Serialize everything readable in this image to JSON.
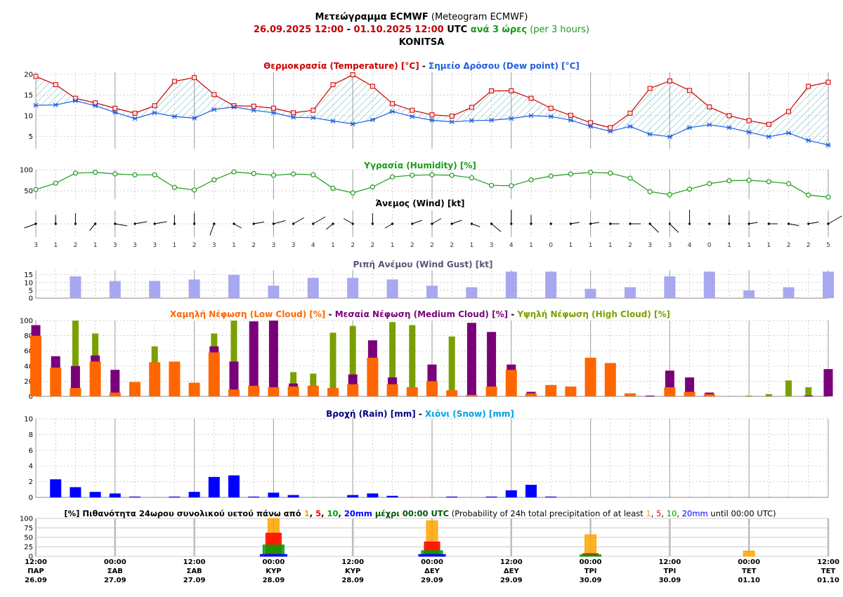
{
  "header": {
    "line1_bold": "Μετεώγραμμα ECMWF",
    "line1_rest": " (Meteogram ECMWF)",
    "start": "26.09.2025 12:00",
    "dash": " - ",
    "end": "01.10.2025 12:00",
    "utc": " UTC ",
    "every_gr": "ανά 3 ώρες",
    "every_en": " (per 3 hours)",
    "location": "KONITSA"
  },
  "titles": {
    "temp": {
      "p1": "Θερμοκρασία (Temperature) [°C]",
      "sep": " - ",
      "p2": "Σημείο Δρόσου (Dew point) [°C]"
    },
    "humidity": "Υγρασία (Humidity) [%]",
    "wind": "Άνεμος (Wind) [kt]",
    "gust": "Ριπή Ανέμου (Wind Gust) [kt]",
    "cloud": {
      "p1": "Χαμηλή Νέφωση (Low Cloud) [%]",
      "s1": " - ",
      "p2": "Μεσαία Νέφωση (Medium Cloud) [%]",
      "s2": " - ",
      "p3": "Υψηλή Νέφωση (High Cloud) [%]"
    },
    "rain": {
      "p1": "Βροχή (Rain) [mm]",
      "sep": " - ",
      "p2": "Χιόνι (Snow) [mm]"
    },
    "prob": {
      "a": "[%] Πιθανότητα 24ωρου συνολικού υετού πάνω από ",
      "t1": "1",
      ", ": ", ",
      "t5": "5",
      "t10": "10",
      "t20": "20mm",
      "b": " μέχρι 00:00 UTC",
      "c": " (Probability of 24h total precipitation of at least ",
      "d": " until 00:00 UTC)"
    }
  },
  "x_labels": [
    {
      "time": "12:00",
      "day": "ΠΑΡ",
      "date": "26.09"
    },
    {
      "time": "00:00",
      "day": "ΣΑΒ",
      "date": "27.09"
    },
    {
      "time": "12:00",
      "day": "ΣΑΒ",
      "date": "27.09"
    },
    {
      "time": "00:00",
      "day": "ΚΥΡ",
      "date": "28.09"
    },
    {
      "time": "12:00",
      "day": "ΚΥΡ",
      "date": "28.09"
    },
    {
      "time": "00:00",
      "day": "ΔΕΥ",
      "date": "29.09"
    },
    {
      "time": "12:00",
      "day": "ΔΕΥ",
      "date": "29.09"
    },
    {
      "time": "00:00",
      "day": "ΤΡΙ",
      "date": "30.09"
    },
    {
      "time": "12:00",
      "day": "ΤΡΙ",
      "date": "30.09"
    },
    {
      "time": "00:00",
      "day": "ΤΕΤ",
      "date": "01.10"
    },
    {
      "time": "12:00",
      "day": "ΤΕΤ",
      "date": "01.10"
    }
  ],
  "colors": {
    "temp": "#cc0000",
    "dew": "#1f5fe0",
    "hum": "#1a9a1a",
    "gust": "#a8a8f0",
    "low": "#ff6600",
    "med": "#7a007a",
    "high": "#7aa000",
    "rain": "#0000ff",
    "p1": "#ffa500",
    "p5": "#ff0000",
    "p10": "#00a000",
    "p20": "#0000ff"
  },
  "chart_data": [
    {
      "type": "line",
      "name": "temperature_dewpoint",
      "series": [
        {
          "name": "Θερμοκρασία (Temperature) [°C]",
          "values": [
            19.5,
            17.5,
            14.2,
            13.1,
            11.8,
            10.6,
            12.4,
            18.3,
            19.2,
            15.1,
            12.4,
            12.3,
            11.8,
            10.7,
            11.3,
            17.5,
            19.9,
            17.1,
            12.9,
            11.3,
            10.2,
            9.9,
            12,
            16,
            16,
            14.2,
            11.8,
            10.1,
            8.3,
            7.1,
            10.6,
            16.6,
            18.4,
            16.1,
            12.1,
            10,
            8.8,
            7.9,
            11,
            17.1,
            18.1
          ]
        },
        {
          "name": "Σημείο Δρόσου (Dew point) [°C]",
          "values": [
            12.5,
            12.6,
            13.6,
            12.4,
            10.8,
            9.3,
            10.7,
            9.8,
            9.4,
            11.5,
            12.1,
            11.3,
            10.7,
            9.6,
            9.5,
            8.7,
            8,
            9,
            11,
            9.8,
            8.9,
            8.5,
            8.8,
            8.9,
            9.3,
            10,
            9.8,
            8.9,
            7.4,
            6.2,
            7.4,
            5.5,
            4.9,
            7.1,
            7.8,
            7.1,
            6,
            4.9,
            5.8,
            4,
            2.9
          ]
        }
      ],
      "yticks": [
        5,
        10,
        15,
        20
      ],
      "ylim": [
        2,
        20.5
      ]
    },
    {
      "type": "line",
      "name": "humidity",
      "series": [
        {
          "name": "Υγρασία (Humidity) [%]",
          "values": [
            53,
            68,
            92,
            94,
            90,
            88,
            88,
            58,
            52,
            76,
            95,
            91,
            87,
            90,
            88,
            56,
            45,
            59,
            83,
            87,
            88,
            87,
            81,
            63,
            62,
            76,
            85,
            90,
            94,
            92,
            80,
            48,
            41,
            54,
            67,
            74,
            75,
            72,
            67,
            40,
            35
          ]
        }
      ],
      "yticks": [
        50,
        100
      ],
      "ylim": [
        30,
        100
      ]
    },
    {
      "type": "wind",
      "name": "wind",
      "speeds": [
        3,
        1,
        2,
        1,
        3,
        3,
        3,
        1,
        2,
        3,
        1,
        2,
        3,
        3,
        4,
        1,
        2,
        2,
        1,
        2,
        2,
        2,
        1,
        3,
        4,
        1,
        0,
        1,
        1,
        1,
        2,
        3,
        3,
        4,
        0,
        1,
        1,
        1,
        2,
        2,
        5
      ]
    },
    {
      "type": "bar",
      "name": "wind_gust",
      "values": [
        null,
        null,
        14,
        null,
        11,
        null,
        11,
        null,
        12,
        null,
        15,
        null,
        8,
        null,
        13,
        null,
        13,
        null,
        12,
        null,
        8,
        null,
        7,
        null,
        17,
        null,
        17,
        null,
        6,
        null,
        7,
        null,
        14,
        null,
        17,
        null,
        5,
        null,
        7,
        null,
        17
      ],
      "yticks": [
        0,
        5,
        10,
        15
      ],
      "ylim": [
        0,
        18
      ]
    },
    {
      "type": "bar",
      "name": "cloud",
      "series": [
        {
          "name": "Χαμηλή Νέφωση (Low Cloud) [%]",
          "values": [
            80,
            38,
            11,
            46,
            5,
            19,
            45,
            46,
            18,
            58,
            9,
            14,
            12,
            13,
            14,
            11,
            16,
            51,
            16,
            12,
            20,
            8,
            2,
            13,
            35,
            4,
            15,
            13,
            51,
            44,
            4,
            0,
            12,
            6,
            3,
            0,
            0,
            0,
            0,
            0,
            0
          ]
        },
        {
          "name": "Μεσαία Νέφωση (Medium Cloud) [%]",
          "values": [
            94,
            53,
            40,
            54,
            35,
            18,
            0,
            0,
            0,
            66,
            46,
            99,
            100,
            17,
            0,
            0,
            29,
            74,
            25,
            0,
            42,
            0,
            97,
            85,
            42,
            6,
            0,
            0,
            0,
            0,
            0,
            1,
            34,
            25,
            5,
            0,
            0,
            0,
            0,
            1,
            36
          ]
        },
        {
          "name": "Υψηλή Νέφωση (High Cloud) [%]",
          "values": [
            0,
            0,
            100,
            83,
            0,
            0,
            66,
            0,
            0,
            83,
            100,
            0,
            0,
            32,
            30,
            84,
            93,
            0,
            98,
            94,
            0,
            79,
            0,
            0,
            0,
            0,
            0,
            0,
            0,
            0,
            0,
            0,
            0,
            0,
            0,
            0,
            1,
            3,
            21,
            12,
            0
          ]
        }
      ],
      "yticks": [
        0,
        20,
        40,
        60,
        80,
        100
      ],
      "ylim": [
        0,
        100
      ]
    },
    {
      "type": "bar",
      "name": "rain_snow",
      "series": [
        {
          "name": "Βροχή (Rain) [mm]",
          "values": [
            null,
            2.3,
            1.3,
            0.7,
            0.5,
            0.1,
            null,
            0.1,
            0.7,
            2.6,
            2.8,
            0.1,
            0.6,
            0.3,
            null,
            null,
            0.3,
            0.5,
            0.2,
            null,
            null,
            0.1,
            null,
            0.1,
            0.9,
            1.6,
            0.1,
            null,
            null,
            null,
            null,
            null,
            null,
            null,
            null,
            null,
            null,
            null,
            null,
            null,
            null
          ]
        },
        {
          "name": "Χιόνι (Snow) [mm]",
          "values": []
        }
      ],
      "yticks": [
        0,
        2,
        4,
        6,
        8,
        10
      ],
      "ylim": [
        0,
        10
      ]
    },
    {
      "type": "bar",
      "name": "precip_probability",
      "days": [
        "28.09",
        "29.09",
        "30.09",
        "01.10"
      ],
      "p1": [
        100,
        94,
        57,
        14
      ],
      "p5": [
        61,
        38,
        7,
        0
      ],
      "p10": [
        30,
        15,
        4,
        0
      ],
      "p20": [
        5,
        5,
        0,
        0
      ],
      "yticks": [
        0,
        25,
        50,
        75,
        100
      ],
      "ylim": [
        0,
        100
      ]
    }
  ]
}
